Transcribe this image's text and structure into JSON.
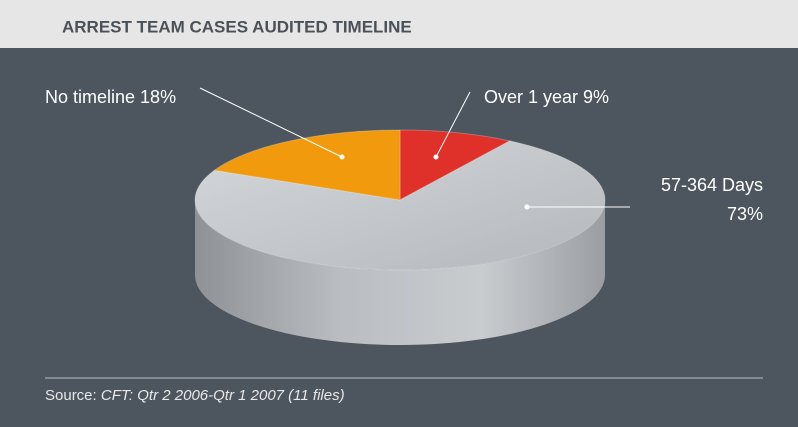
{
  "chart_data": {
    "type": "pie",
    "title": "ARREST TEAM CASES AUDITED TIMELINE",
    "categories": [
      "Over 1 year",
      "57-364 Days",
      "No timeline"
    ],
    "values": [
      9,
      73,
      18
    ],
    "value_labels": [
      "9%",
      "73%",
      "18%"
    ],
    "colors": [
      "#e0302a",
      "#c3c7cb",
      "#f29a0e"
    ],
    "source_label": "Source:",
    "source": "CFT: Qtr 2 2006-Qtr 1 2007 (11 files)"
  }
}
